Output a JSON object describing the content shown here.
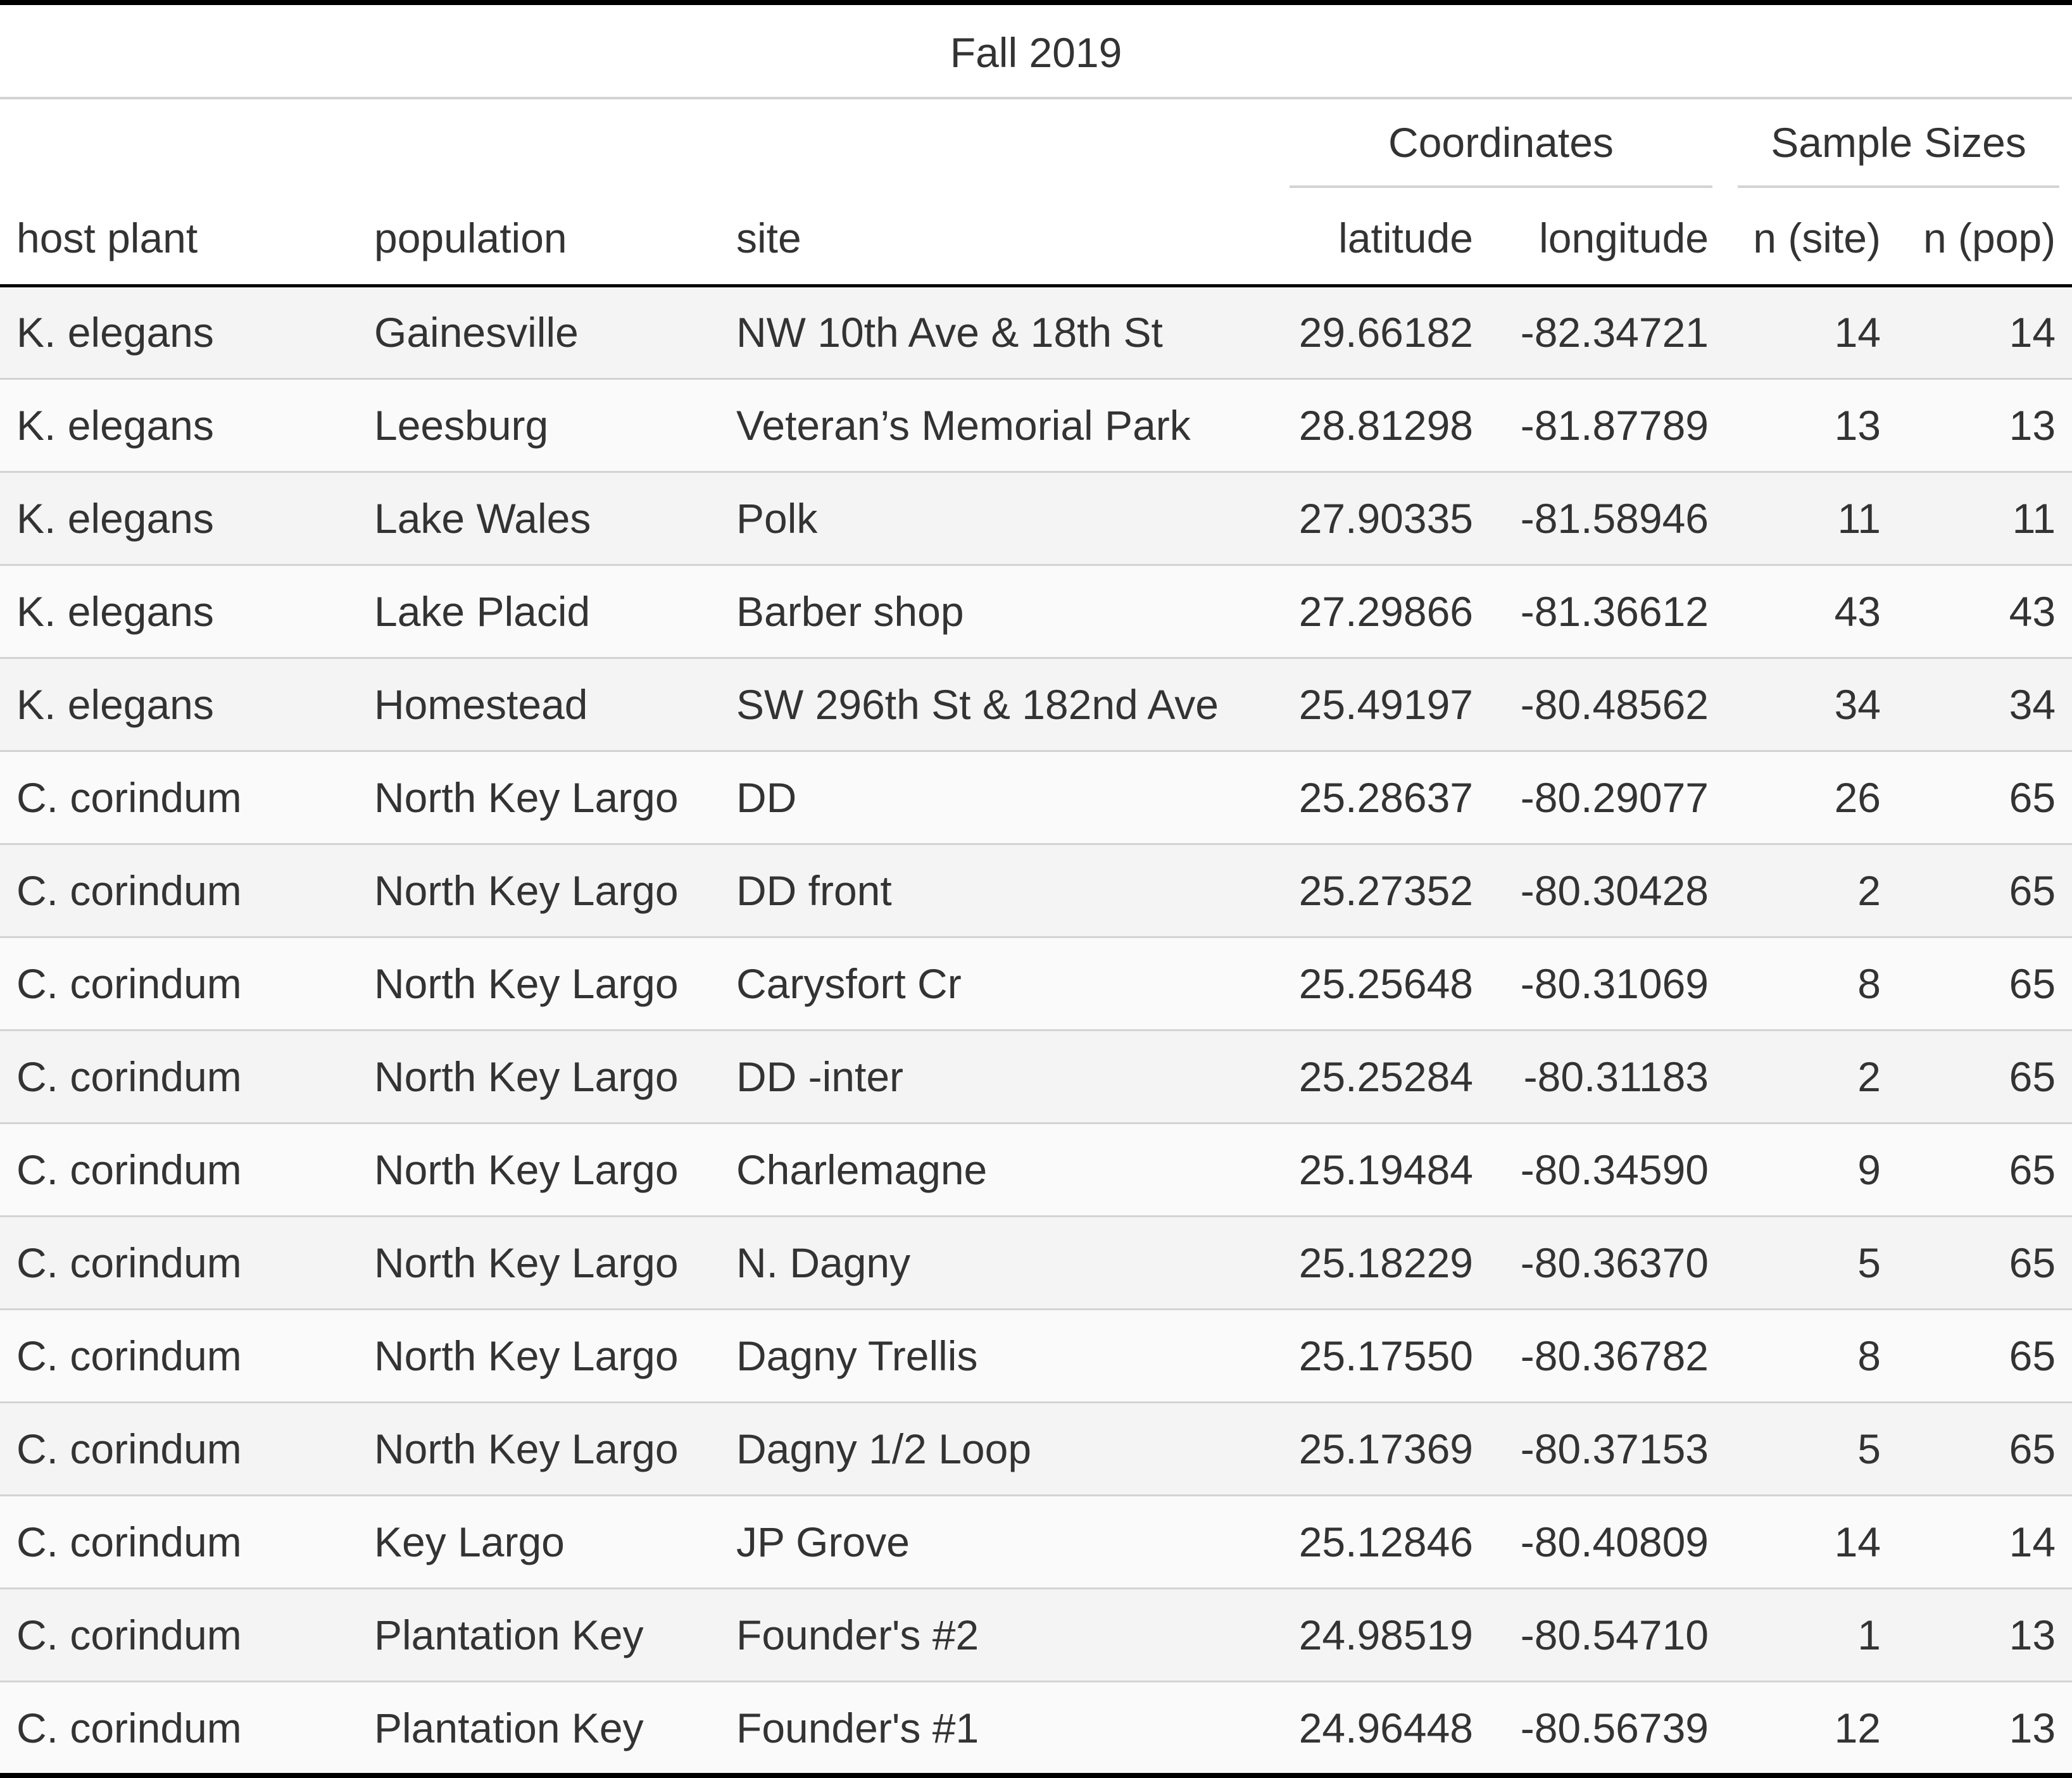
{
  "table": {
    "title": "Fall 2019",
    "spanners": {
      "coordinates": "Coordinates",
      "sample_sizes": "Sample Sizes"
    },
    "columns": {
      "host_plant": "host plant",
      "population": "population",
      "site": "site",
      "latitude": "latitude",
      "longitude": "longitude",
      "n_site": "n (site)",
      "n_pop": "n (pop)"
    },
    "rows": [
      [
        "K. elegans",
        "Gainesville",
        "NW 10th Ave & 18th St",
        "29.66182",
        "-82.34721",
        "14",
        "14"
      ],
      [
        "K. elegans",
        "Leesburg",
        "Veteran’s Memorial Park",
        "28.81298",
        "-81.87789",
        "13",
        "13"
      ],
      [
        "K. elegans",
        "Lake Wales",
        "Polk",
        "27.90335",
        "-81.58946",
        "11",
        "11"
      ],
      [
        "K. elegans",
        "Lake Placid",
        "Barber shop",
        "27.29866",
        "-81.36612",
        "43",
        "43"
      ],
      [
        "K. elegans",
        "Homestead",
        "SW 296th St & 182nd Ave",
        "25.49197",
        "-80.48562",
        "34",
        "34"
      ],
      [
        "C. corindum",
        "North Key Largo",
        "DD",
        "25.28637",
        "-80.29077",
        "26",
        "65"
      ],
      [
        "C. corindum",
        "North Key Largo",
        "DD front",
        "25.27352",
        "-80.30428",
        "2",
        "65"
      ],
      [
        "C. corindum",
        "North Key Largo",
        "Carysfort Cr",
        "25.25648",
        "-80.31069",
        "8",
        "65"
      ],
      [
        "C. corindum",
        "North Key Largo",
        "DD -inter",
        "25.25284",
        "-80.31183",
        "2",
        "65"
      ],
      [
        "C. corindum",
        "North Key Largo",
        "Charlemagne",
        "25.19484",
        "-80.34590",
        "9",
        "65"
      ],
      [
        "C. corindum",
        "North Key Largo",
        "N. Dagny",
        "25.18229",
        "-80.36370",
        "5",
        "65"
      ],
      [
        "C. corindum",
        "North Key Largo",
        "Dagny Trellis",
        "25.17550",
        "-80.36782",
        "8",
        "65"
      ],
      [
        "C. corindum",
        "North Key Largo",
        "Dagny 1/2 Loop",
        "25.17369",
        "-80.37153",
        "5",
        "65"
      ],
      [
        "C. corindum",
        "Key Largo",
        "JP Grove",
        "25.12846",
        "-80.40809",
        "14",
        "14"
      ],
      [
        "C. corindum",
        "Plantation Key",
        "Founder's #2",
        "24.98519",
        "-80.54710",
        "1",
        "13"
      ],
      [
        "C. corindum",
        "Plantation Key",
        "Founder's #1",
        "24.96448",
        "-80.56739",
        "12",
        "13"
      ]
    ]
  }
}
